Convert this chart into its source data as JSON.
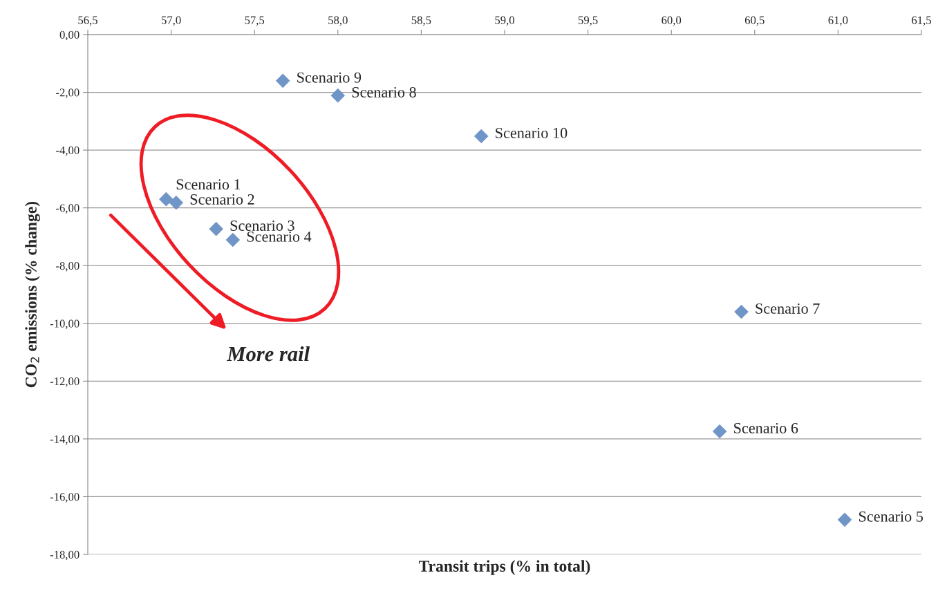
{
  "chart_data": {
    "type": "scatter",
    "xlabel": "Transit trips (% in total)",
    "ylabel": "CO$_{2}$ emissions (% change)",
    "x": [
      56.97,
      57.03,
      57.27,
      57.37,
      61.04,
      60.29,
      60.42,
      58.0,
      57.67,
      58.86
    ],
    "values": [
      -5.7,
      -5.82,
      -6.73,
      -7.11,
      -16.8,
      -13.74,
      -9.6,
      -2.11,
      -1.6,
      -3.52
    ],
    "color": "#7096c8",
    "marker": "diamond",
    "grid": "y",
    "legend": false,
    "xlim": [
      56.5,
      61.5
    ],
    "xticks": [
      {
        "value": 56.5,
        "label": "56,5"
      },
      {
        "value": 57.0,
        "label": "57,0"
      },
      {
        "value": 57.5,
        "label": "57,5"
      },
      {
        "value": 58.0,
        "label": "58,0"
      },
      {
        "value": 58.5,
        "label": "58,5"
      },
      {
        "value": 59.0,
        "label": "59,0"
      },
      {
        "value": 59.5,
        "label": "59,5"
      },
      {
        "value": 60.0,
        "label": "60,0"
      },
      {
        "value": 60.5,
        "label": "60,5"
      },
      {
        "value": 61.0,
        "label": "61,0"
      },
      {
        "value": 61.5,
        "label": "61,5"
      }
    ],
    "ylim": [
      -18,
      0
    ],
    "yticks": [
      {
        "value": 0,
        "label": "0,00"
      },
      {
        "value": -2,
        "label": "-2,00"
      },
      {
        "value": -4,
        "label": "-4,00"
      },
      {
        "value": -6,
        "label": "-6,00"
      },
      {
        "value": -8,
        "label": "-8,00"
      },
      {
        "value": -10,
        "label": "-10,00"
      },
      {
        "value": -12,
        "label": "-12,00"
      },
      {
        "value": -14,
        "label": "-14,00"
      },
      {
        "value": -16,
        "label": "-16,00"
      },
      {
        "value": -18,
        "label": "-18,00"
      }
    ],
    "annotations": [
      {
        "text": "Scenario 1",
        "x": 56.97,
        "y": -5.7
      },
      {
        "text": "Scenario 2",
        "x": 57.03,
        "y": -5.82
      },
      {
        "text": "Scenario 3",
        "x": 57.27,
        "y": -6.73
      },
      {
        "text": "Scenario 4",
        "x": 57.37,
        "y": -7.11
      },
      {
        "text": "Scenario 5",
        "x": 61.04,
        "y": -16.8
      },
      {
        "text": "Scenario 6",
        "x": 60.29,
        "y": -13.74
      },
      {
        "text": "Scenario 7",
        "x": 60.42,
        "y": -9.6
      },
      {
        "text": "Scenario 8",
        "x": 58.0,
        "y": -2.11
      },
      {
        "text": "Scenario 9",
        "x": 57.67,
        "y": -1.6
      },
      {
        "text": "Scenario 10",
        "x": 58.86,
        "y": -3.52
      },
      "More rail"
    ]
  }
}
